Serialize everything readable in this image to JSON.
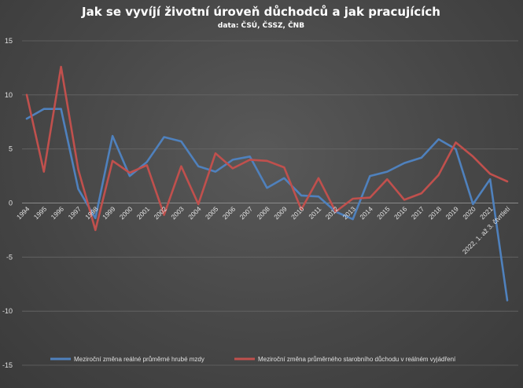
{
  "chart_data": {
    "type": "line",
    "title": "Jak se vyvíjí životní úroveň důchodců a jak pracujících",
    "subtitle": "data: ČSÚ, ČSSZ, ČNB",
    "categories": [
      "1994",
      "1995",
      "1996",
      "1997",
      "1998",
      "1999",
      "2000",
      "2001",
      "2002",
      "2003",
      "2004",
      "2005",
      "2006",
      "2007",
      "2008",
      "2009",
      "2010",
      "2011",
      "2012",
      "2013",
      "2014",
      "2015",
      "2016",
      "2017",
      "2018",
      "2019",
      "2020",
      "2021",
      "2022, 1. až 3. čtvrtletí"
    ],
    "ylim": [
      -15,
      15
    ],
    "yticks": [
      15,
      10,
      5,
      0,
      -5,
      -10,
      -15
    ],
    "grid": true,
    "legend_position": "bottom",
    "series": [
      {
        "name": "Meziroční změna reálné průměrné hrubé mzdy",
        "color": "#4f81bd",
        "values": [
          7.8,
          8.7,
          8.7,
          1.3,
          -1.4,
          6.2,
          2.5,
          3.8,
          6.1,
          5.7,
          3.4,
          2.9,
          4.0,
          4.3,
          1.4,
          2.3,
          0.7,
          0.6,
          -0.8,
          -1.5,
          2.5,
          2.9,
          3.7,
          4.2,
          5.9,
          5.0,
          -0.1,
          2.2,
          -9.0
        ]
      },
      {
        "name": "Meziroční změna průměrného starobního důchodu v reálném vyjádření",
        "color": "#c0504d",
        "values": [
          10.0,
          2.9,
          12.6,
          3.1,
          -2.5,
          3.9,
          2.8,
          3.5,
          -1.1,
          3.4,
          -0.1,
          4.6,
          3.2,
          4.0,
          3.9,
          3.3,
          -0.6,
          2.3,
          -0.8,
          0.4,
          0.5,
          2.2,
          0.3,
          0.9,
          2.6,
          5.6,
          4.3,
          2.7,
          2.0
        ]
      }
    ]
  }
}
